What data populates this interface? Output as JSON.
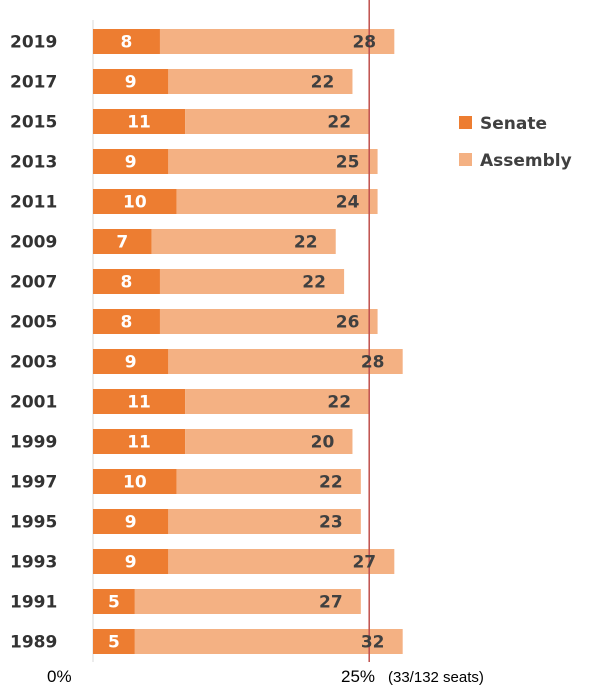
{
  "chart_data": {
    "type": "bar",
    "stacked": true,
    "orientation": "horizontal",
    "categories": [
      "2019",
      "2017",
      "2015",
      "2013",
      "2011",
      "2009",
      "2007",
      "2005",
      "2003",
      "2001",
      "1999",
      "1997",
      "1995",
      "1993",
      "1991",
      "1989"
    ],
    "series": [
      {
        "name": "Senate",
        "color": "#ED7D31",
        "values": [
          8,
          9,
          11,
          9,
          10,
          7,
          8,
          8,
          9,
          11,
          11,
          10,
          9,
          9,
          5,
          5
        ]
      },
      {
        "name": "Assembly",
        "color": "#F4B183",
        "values": [
          28,
          22,
          22,
          25,
          24,
          22,
          22,
          26,
          28,
          22,
          20,
          22,
          23,
          27,
          27,
          32
        ]
      }
    ],
    "x_axis": {
      "min_label": "0%",
      "reference_label": "25%",
      "reference_note": "(33/132 seats)",
      "reference_value": 33
    },
    "reference_line": {
      "value": 33,
      "color": "#C0504D"
    },
    "xlim": [
      0,
      38
    ],
    "legend": {
      "position": "right",
      "entries": [
        "Senate",
        "Assembly"
      ]
    },
    "grid": false,
    "title": "",
    "xlabel": "",
    "ylabel": ""
  }
}
